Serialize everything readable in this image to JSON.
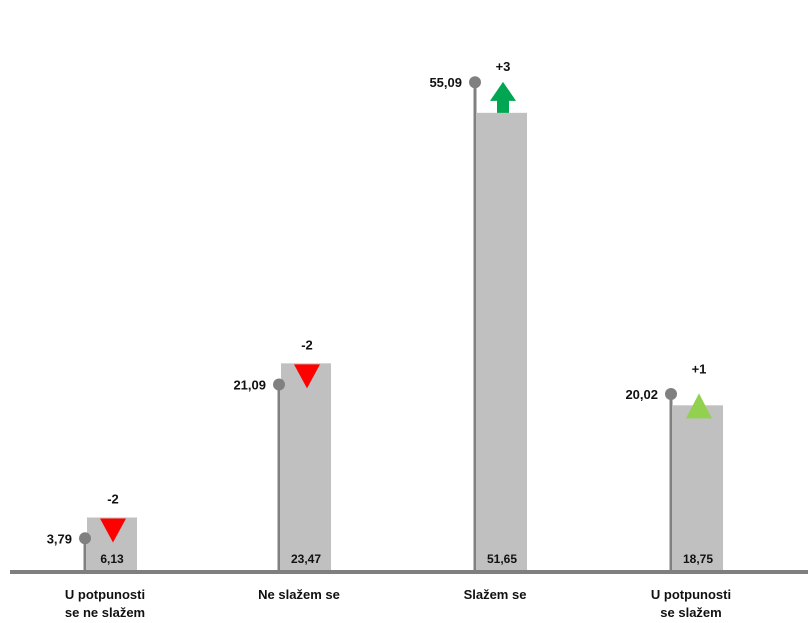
{
  "chart_data": {
    "type": "bar",
    "categories": [
      [
        "U potpunosti",
        "se ne slažem"
      ],
      [
        "Ne slažem se"
      ],
      [
        "Slažem se"
      ],
      [
        "U potpunosti",
        "se slažem"
      ]
    ],
    "series": [
      {
        "kind": "bar",
        "values": [
          6.13,
          23.47,
          51.65,
          18.75
        ],
        "labels": [
          "6,13",
          "23,47",
          "51,65",
          "18,75"
        ]
      },
      {
        "kind": "lollipop",
        "values": [
          3.79,
          21.09,
          55.09,
          20.02
        ],
        "labels": [
          "3,79",
          "21,09",
          "55,09",
          "20,02"
        ]
      }
    ],
    "changes": [
      {
        "label": "-2",
        "direction": "down",
        "color": "#ff0000"
      },
      {
        "label": "-2",
        "direction": "down",
        "color": "#ff0000"
      },
      {
        "label": "+3",
        "direction": "up",
        "color": "#00a651"
      },
      {
        "label": "+1",
        "direction": "up",
        "color": "#92d050"
      }
    ],
    "ylim": [
      0,
      60
    ],
    "grid": false,
    "legend": "none",
    "colors": {
      "bar": "#c0c0c0",
      "lollipop": "#808080",
      "axis": "#7f7f7f"
    }
  }
}
